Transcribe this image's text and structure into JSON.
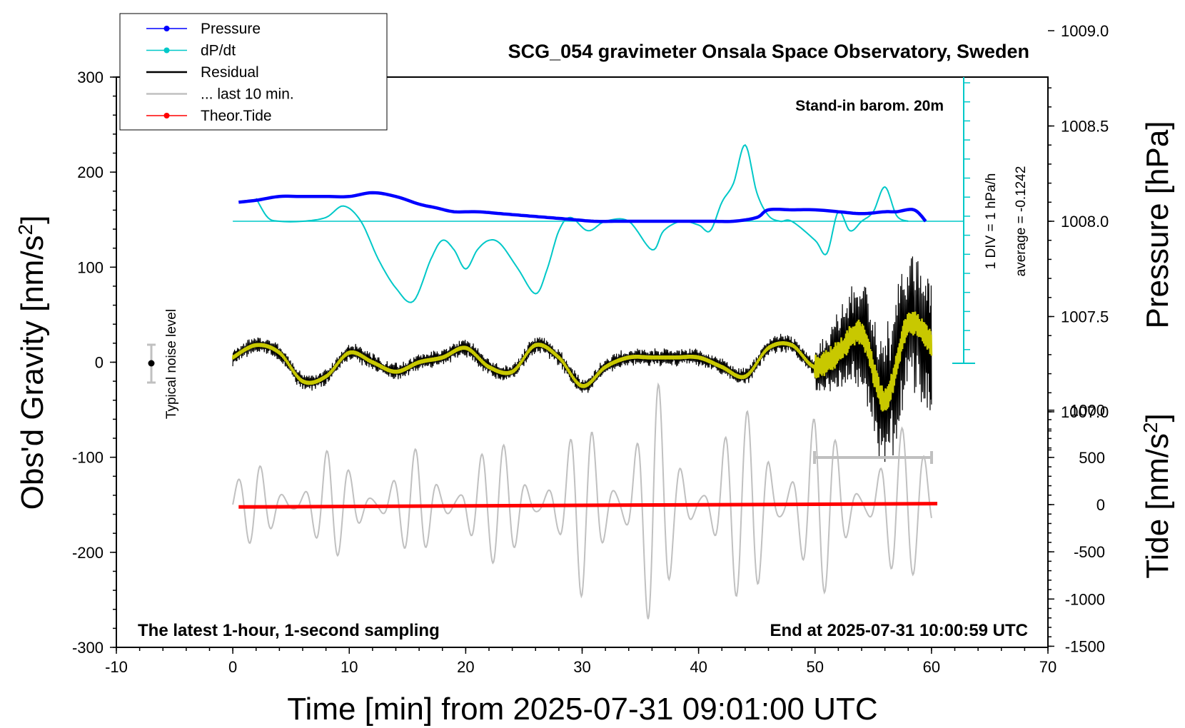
{
  "chart_data": {
    "type": "line",
    "title": "SCG_054 gravimeter Onsala Space Observatory, Sweden",
    "xlabel": "Time [min] from 2025-07-31 09:01:00 UTC",
    "ylabel_left": "Obs'd Gravity [nm/s",
    "ylabel_left_sup": "2",
    "ylabel_left_end": "]",
    "ylabel_right_top": "Pressure [hPa]",
    "ylabel_right_bottom": "Tide [nm/s",
    "ylabel_right_bottom_sup": "2",
    "ylabel_right_bottom_end": "]",
    "xlim": [
      -10,
      70
    ],
    "ylim": [
      -300,
      300
    ],
    "x_ticks": [
      "-10",
      "0",
      "10",
      "20",
      "30",
      "40",
      "50",
      "60",
      "70"
    ],
    "y_ticks": [
      "300",
      "200",
      "100",
      "0",
      "-100",
      "-200",
      "-300"
    ],
    "pressure_ticks": [
      "1009.0",
      "1008.5",
      "1008.0",
      "1007.5",
      "1007.0"
    ],
    "tide_ticks": [
      "1000",
      "500",
      "0",
      "-500",
      "-1000",
      "-1500"
    ],
    "annotations": {
      "barometer": "Stand-in barom. 20m",
      "div_label": "1 DIV = 1 hPa/h",
      "average_label": "average = -0.1242",
      "noise_label": "Typical noise level",
      "bottom_left": "The latest 1-hour, 1-second sampling",
      "bottom_right": "End at 2025-07-31 10:00:59 UTC"
    },
    "legend": [
      {
        "name": "Pressure",
        "color": "#0000ff",
        "marker": true
      },
      {
        "name": "dP/dt",
        "color": "#00c8c8",
        "marker": true
      },
      {
        "name": "Residual",
        "color": "#000000",
        "marker": false
      },
      {
        "name": "... last 10 min.",
        "color": "#c0c0c0",
        "marker": false
      },
      {
        "name": "Theor.Tide",
        "color": "#ff0000",
        "marker": true
      }
    ],
    "series": [
      {
        "name": "Pressure",
        "axis": "pressure_hPa",
        "color": "#0000ff",
        "x": [
          0.5,
          2,
          4,
          6,
          8,
          10,
          12,
          14,
          16,
          17.5,
          19,
          21,
          23,
          25,
          27,
          29,
          31,
          33,
          35,
          37,
          39,
          41,
          43,
          45,
          46,
          48,
          50,
          52,
          54,
          56,
          57,
          58.5,
          59.5
        ],
        "y": [
          1008.1,
          1008.11,
          1008.13,
          1008.13,
          1008.13,
          1008.13,
          1008.15,
          1008.13,
          1008.09,
          1008.07,
          1008.05,
          1008.05,
          1008.04,
          1008.03,
          1008.02,
          1008.01,
          1008.0,
          1008.0,
          1008.0,
          1008.0,
          1008.0,
          1008.0,
          1008.0,
          1008.02,
          1008.06,
          1008.06,
          1008.06,
          1008.05,
          1008.04,
          1008.05,
          1008.05,
          1008.06,
          1008.0
        ]
      },
      {
        "name": "dP/dt",
        "axis": "pressure_rate",
        "color": "#00c8c8",
        "baseline_hPa": 1008.0,
        "x": [
          2,
          3,
          4,
          6,
          8,
          9.5,
          11,
          12.5,
          14,
          15.5,
          17,
          18,
          19,
          20,
          21,
          22,
          23,
          24.5,
          26,
          27,
          28,
          29,
          30.5,
          32,
          34,
          36,
          37,
          38.5,
          40,
          41,
          42,
          43,
          44,
          45,
          46,
          47,
          48,
          50,
          51,
          52,
          53,
          54,
          55,
          56,
          57,
          58
        ],
        "y": [
          1008.12,
          1008.02,
          1008.0,
          1008.0,
          1008.02,
          1008.08,
          1008.0,
          1007.8,
          1007.65,
          1007.58,
          1007.8,
          1007.9,
          1007.85,
          1007.75,
          1007.85,
          1007.9,
          1007.88,
          1007.75,
          1007.62,
          1007.75,
          1007.95,
          1008.02,
          1007.95,
          1008.0,
          1008.0,
          1007.85,
          1007.95,
          1008.0,
          1007.98,
          1007.95,
          1008.1,
          1008.2,
          1008.4,
          1008.15,
          1008.03,
          1008.0,
          1008.0,
          1007.9,
          1007.83,
          1008.05,
          1007.95,
          1008.0,
          1008.05,
          1008.18,
          1008.03,
          1008.0
        ]
      },
      {
        "name": "Residual",
        "axis": "gravity_nm_s2",
        "color": "#000000",
        "x": [
          0,
          2,
          4,
          6,
          8,
          10,
          12,
          14,
          16,
          18,
          20,
          22,
          24,
          26,
          28,
          30,
          32,
          34,
          36,
          38,
          40,
          42,
          44,
          46,
          48,
          50,
          52,
          54,
          56,
          58,
          60
        ],
        "y": [
          5,
          18,
          10,
          -20,
          -15,
          10,
          0,
          -10,
          0,
          5,
          15,
          -5,
          -10,
          18,
          5,
          -25,
          -5,
          5,
          5,
          5,
          5,
          -5,
          -15,
          15,
          18,
          -5,
          10,
          30,
          -40,
          40,
          20
        ]
      },
      {
        "name": "... last 10 min.",
        "axis": "tide_nm_s2",
        "color": "#c0c0c0",
        "x": [
          0,
          2,
          4,
          6,
          8,
          10,
          12,
          14,
          16,
          18,
          20,
          22,
          24,
          26,
          28,
          30,
          32,
          34,
          36,
          38,
          40,
          42,
          44,
          46,
          48,
          50,
          52,
          54,
          56,
          58,
          60
        ],
        "y": [
          -330,
          -450,
          -380,
          -500,
          -620,
          -480,
          -540,
          -520,
          -600,
          -350,
          -1000,
          -620,
          -700,
          -750,
          -500,
          -1000,
          -1000,
          -1300,
          -1500,
          -700,
          -800,
          -1000,
          -1000,
          -1500,
          -1000,
          -1000,
          -850,
          -800,
          -850,
          -800,
          -1000
        ]
      },
      {
        "name": "Theor.Tide",
        "axis": "tide_nm_s2",
        "color": "#ff0000",
        "x": [
          0.5,
          60.5
        ],
        "y": [
          -25,
          10
        ]
      }
    ]
  }
}
